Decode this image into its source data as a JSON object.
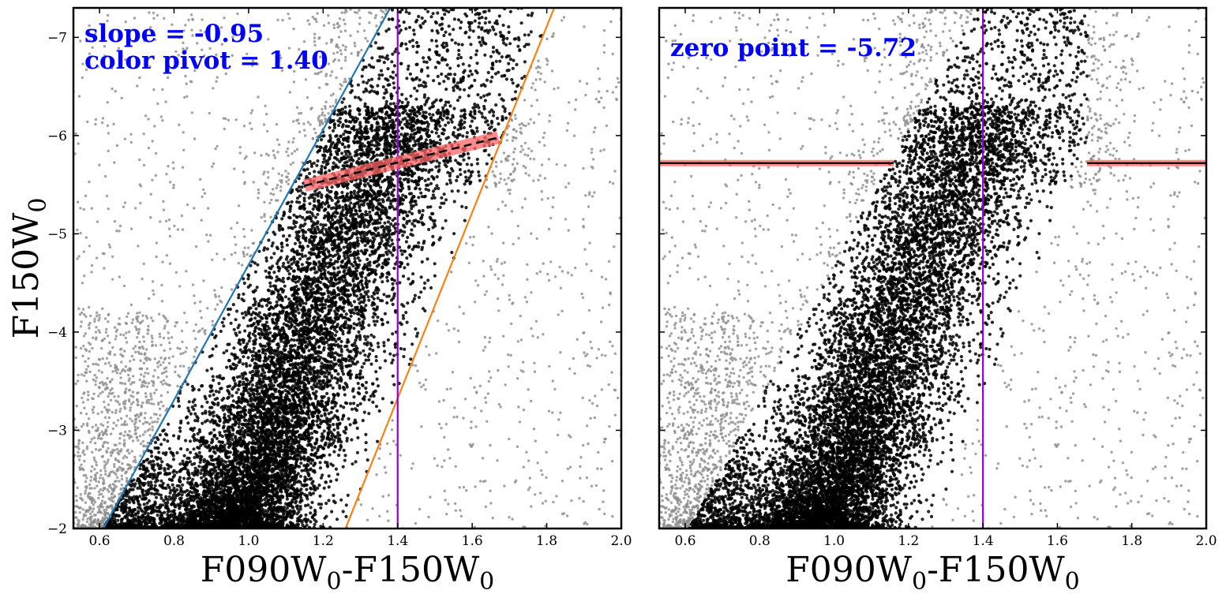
{
  "chart_data": [
    {
      "type": "scatter",
      "panel": "left",
      "xlabel_parts": [
        "F090W",
        "0",
        "-F150W",
        "0"
      ],
      "ylabel_parts": [
        "F150W",
        "0"
      ],
      "xlim": [
        0.53,
        2.0
      ],
      "ylim": [
        -2.0,
        -7.3
      ],
      "xticks": [
        0.6,
        0.8,
        1.0,
        1.2,
        1.4,
        1.6,
        1.8,
        2.0
      ],
      "yticks": [
        -2,
        -3,
        -4,
        -5,
        -6,
        -7
      ],
      "xtick_labels": [
        "0.6",
        "0.8",
        "1.0",
        "1.2",
        "1.4",
        "1.6",
        "1.8",
        "2.0"
      ],
      "ytick_labels": [
        "−2",
        "−3",
        "−4",
        "−5",
        "−6",
        "−7"
      ],
      "annotation_lines": [
        "slope = -0.95",
        "color pivot = 1.40"
      ],
      "selection_lines": [
        {
          "name": "blue boundary",
          "color": "#1f77b4",
          "points": [
            [
              0.61,
              -2.0
            ],
            [
              1.38,
              -7.3
            ]
          ]
        },
        {
          "name": "orange boundary",
          "color": "#ff7f0e",
          "points": [
            [
              1.26,
              -2.0
            ],
            [
              1.82,
              -7.3
            ]
          ]
        },
        {
          "name": "color pivot",
          "color": "#9400d3",
          "points": [
            [
              1.4,
              -2.0
            ],
            [
              1.4,
              -7.3
            ]
          ]
        },
        {
          "name": "TRGB fit",
          "color": "#000000",
          "style": "dashed",
          "points": [
            [
              1.15,
              -5.49
            ],
            [
              1.67,
              -5.98
            ]
          ],
          "band_color": "#ff6666"
        }
      ],
      "point_groups": [
        {
          "name": "selected stars",
          "color": "#000000"
        },
        {
          "name": "rejected stars",
          "color": "#8c8c8c"
        }
      ]
    },
    {
      "type": "scatter",
      "panel": "right",
      "xlabel_parts": [
        "F090W",
        "0",
        "-F150W",
        "0"
      ],
      "xlim": [
        0.53,
        2.0
      ],
      "ylim": [
        -2.0,
        -7.3
      ],
      "xticks": [
        0.6,
        0.8,
        1.0,
        1.2,
        1.4,
        1.6,
        1.8,
        2.0
      ],
      "yticks": [
        -2,
        -3,
        -4,
        -5,
        -6,
        -7
      ],
      "xtick_labels": [
        "0.6",
        "0.8",
        "1.0",
        "1.2",
        "1.4",
        "1.6",
        "1.8",
        "2.0"
      ],
      "annotation_lines": [
        "zero point = -5.72"
      ],
      "selection_lines": [
        {
          "name": "color pivot",
          "color": "#9400d3",
          "points": [
            [
              1.4,
              -2.0
            ],
            [
              1.4,
              -7.3
            ]
          ]
        },
        {
          "name": "zero point left",
          "color": "#000000",
          "points": [
            [
              0.53,
              -5.72
            ],
            [
              1.16,
              -5.72
            ]
          ],
          "band_color": "#ff6666"
        },
        {
          "name": "zero point right",
          "color": "#000000",
          "points": [
            [
              1.68,
              -5.72
            ],
            [
              2.0,
              -5.72
            ]
          ],
          "band_color": "#ff6666"
        }
      ],
      "point_groups": [
        {
          "name": "selected stars",
          "color": "#000000"
        },
        {
          "name": "rejected stars",
          "color": "#8c8c8c"
        }
      ]
    }
  ]
}
